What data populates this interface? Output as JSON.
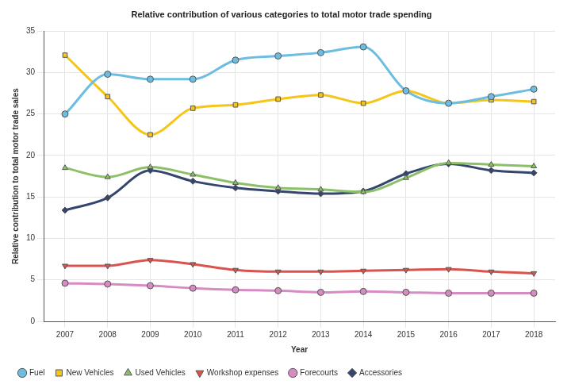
{
  "chart_data": {
    "type": "line",
    "title": "Relative contribution of various categories to total motor trade spending",
    "x_label": "Year",
    "y_label": "Relative contribution to total motor trade sales",
    "categories": [
      "2007",
      "2008",
      "2009",
      "2010",
      "2011",
      "2012",
      "2013",
      "2014",
      "2015",
      "2016",
      "2017",
      "2018"
    ],
    "series": [
      {
        "name": "Fuel",
        "color": "#6cbde0",
        "marker": "circle",
        "values": [
          25.0,
          29.8,
          29.2,
          29.2,
          31.5,
          32.0,
          32.4,
          33.1,
          27.8,
          26.3,
          27.1,
          28.0
        ]
      },
      {
        "name": "New Vehicles",
        "color": "#f5c518",
        "marker": "square",
        "values": [
          32.1,
          27.1,
          22.5,
          25.7,
          26.1,
          26.8,
          27.3,
          26.3,
          27.8,
          26.3,
          26.7,
          26.5
        ]
      },
      {
        "name": "Used Vehicles",
        "color": "#8cc068",
        "marker": "triangle",
        "values": [
          18.5,
          17.4,
          18.6,
          17.7,
          16.7,
          16.1,
          15.9,
          15.6,
          17.3,
          19.1,
          18.9,
          18.7
        ]
      },
      {
        "name": "Workshop expenses",
        "color": "#d9534f",
        "marker": "triangle-down",
        "values": [
          6.7,
          6.7,
          7.4,
          6.9,
          6.2,
          6.0,
          6.0,
          6.1,
          6.2,
          6.3,
          6.0,
          5.8
        ]
      },
      {
        "name": "Forecourts",
        "color": "#d68cc2",
        "marker": "circle",
        "values": [
          4.6,
          4.5,
          4.3,
          4.0,
          3.8,
          3.7,
          3.5,
          3.6,
          3.5,
          3.4,
          3.4,
          3.4
        ]
      },
      {
        "name": "Accessories",
        "color": "#34466e",
        "marker": "diamond",
        "values": [
          13.4,
          14.9,
          18.2,
          16.9,
          16.1,
          15.7,
          15.4,
          15.7,
          17.8,
          19.0,
          18.2,
          17.9
        ]
      }
    ],
    "ylim": [
      0,
      35
    ],
    "yticks": [
      0,
      5,
      10,
      15,
      20,
      25,
      30,
      35
    ],
    "grid": true,
    "legend": "bottom-left"
  }
}
